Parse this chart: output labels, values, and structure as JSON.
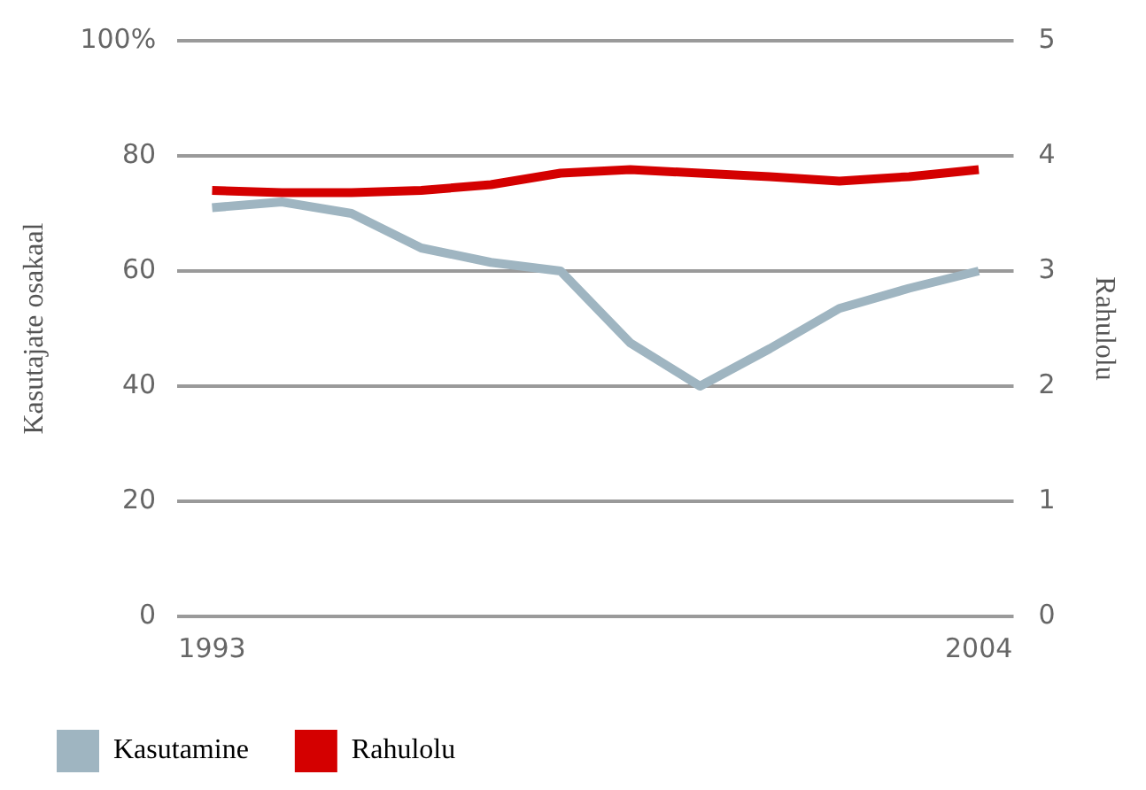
{
  "chart_data": {
    "type": "line",
    "ylabel": "Kasutajate osakaal",
    "y2label": "Rahulolu",
    "categories": [
      "1993",
      null,
      null,
      null,
      null,
      null,
      null,
      null,
      null,
      null,
      null,
      "2004"
    ],
    "series": [
      {
        "name": "Kasutamine",
        "color": "#9fb5c1",
        "values": [
          71,
          72,
          70,
          64,
          61.5,
          60,
          47.5,
          40,
          46.5,
          53.5,
          57,
          60
        ]
      },
      {
        "name": "Rahulolu",
        "color": "#d40000",
        "axis": "y2",
        "values": [
          3.7,
          3.68,
          3.68,
          3.7,
          3.75,
          3.85,
          3.88,
          3.85,
          3.82,
          3.78,
          3.82,
          3.88
        ]
      }
    ],
    "ylim": [
      0,
      100
    ],
    "yticks": [
      0,
      20,
      40,
      60,
      80,
      {
        "value": 100,
        "label": "100%"
      }
    ],
    "y2lim": [
      0,
      5
    ],
    "y2ticks": [
      0,
      1,
      2,
      3,
      4,
      5
    ],
    "grid": "y",
    "legend": "bottom",
    "marker": "none",
    "line_style": "solid"
  }
}
